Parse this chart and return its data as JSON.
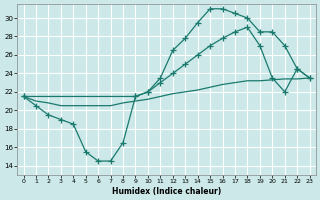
{
  "xlabel": "Humidex (Indice chaleur)",
  "bg_color": "#cce8e8",
  "grid_color": "#ffffff",
  "line_color": "#1a7a6e",
  "xlim": [
    -0.5,
    23.5
  ],
  "ylim": [
    13,
    31.5
  ],
  "xticks": [
    0,
    1,
    2,
    3,
    4,
    5,
    6,
    7,
    8,
    9,
    10,
    11,
    12,
    13,
    14,
    15,
    16,
    17,
    18,
    19,
    20,
    21,
    22,
    23
  ],
  "yticks": [
    14,
    16,
    18,
    20,
    22,
    24,
    26,
    28,
    30
  ],
  "series1_x": [
    0,
    1,
    2,
    3,
    4,
    5,
    6,
    7,
    8,
    9,
    10,
    11,
    12,
    13,
    14,
    15,
    16,
    17,
    18,
    19,
    20,
    21,
    22,
    23
  ],
  "series1_y": [
    21.5,
    20.5,
    19.5,
    19.0,
    18.5,
    15.5,
    14.5,
    14.5,
    16.5,
    21.5,
    22.0,
    23.5,
    26.5,
    27.8,
    29.5,
    31.0,
    31.0,
    30.5,
    30.0,
    28.5,
    28.5,
    27.0,
    24.5,
    23.5
  ],
  "series2_x": [
    0,
    9,
    10,
    11,
    12,
    13,
    14,
    15,
    16,
    17,
    18,
    19,
    20,
    21,
    22,
    23
  ],
  "series2_y": [
    21.5,
    21.5,
    22.0,
    23.0,
    24.0,
    25.0,
    26.0,
    27.0,
    27.8,
    28.5,
    29.0,
    27.0,
    23.5,
    22.0,
    24.5,
    23.5
  ],
  "series3_x": [
    0,
    1,
    2,
    3,
    4,
    5,
    6,
    7,
    8,
    9,
    10,
    11,
    12,
    13,
    14,
    15,
    16,
    17,
    18,
    19,
    20,
    21,
    22,
    23
  ],
  "series3_y": [
    21.5,
    21.0,
    20.8,
    20.5,
    20.5,
    20.5,
    20.5,
    20.5,
    20.8,
    21.0,
    21.2,
    21.5,
    21.8,
    22.0,
    22.2,
    22.5,
    22.8,
    23.0,
    23.2,
    23.2,
    23.3,
    23.4,
    23.4,
    23.5
  ]
}
